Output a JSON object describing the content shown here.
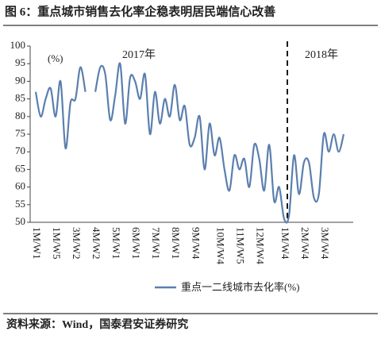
{
  "chart_data": {
    "type": "line",
    "title": "图 6：重点城市销售去化率企稳表明居民端信心改善",
    "source": "资料来源：Wind，国泰君安证券研究",
    "y_axis_label": "(%)",
    "annotations": [
      "2017年",
      "2018年"
    ],
    "categories": [
      "1M/W1",
      null,
      null,
      null,
      "1M/W5",
      null,
      null,
      null,
      "3M/W2",
      null,
      null,
      null,
      "4M/W2",
      null,
      null,
      null,
      "5M/W1",
      null,
      null,
      null,
      "6M/W1",
      null,
      null,
      null,
      "7M/W1",
      null,
      null,
      null,
      "8M/W1",
      null,
      null,
      null,
      "9M/W4",
      null,
      null,
      null,
      null,
      "10M/W4",
      null,
      null,
      null,
      "11M/W5",
      null,
      null,
      null,
      "12M/W4",
      null,
      null,
      null,
      null,
      "1M/W4",
      null,
      null,
      null,
      "2M/W4",
      null,
      null,
      null,
      "3M/W4",
      null,
      null,
      null,
      null
    ],
    "series": [
      {
        "name": "重点一二线城市去化率(%)",
        "color": "#5b7fae",
        "values": [
          87,
          80,
          85,
          88,
          80,
          90,
          71,
          84,
          85,
          94,
          87,
          null,
          87,
          94,
          92,
          79,
          86,
          95,
          78,
          91,
          90,
          85,
          92,
          75,
          87,
          78,
          85,
          80,
          89,
          79,
          83,
          72,
          74,
          80,
          65,
          78,
          69,
          74,
          65,
          59,
          69,
          65,
          68,
          60,
          72,
          68,
          59,
          72,
          56,
          60,
          51,
          52,
          69,
          58,
          67,
          67,
          57,
          58,
          75,
          70,
          75,
          70,
          75
        ]
      }
    ],
    "ylim": [
      50,
      100
    ],
    "yticks": [
      50,
      55,
      60,
      65,
      70,
      75,
      80,
      85,
      90,
      95,
      100
    ]
  }
}
